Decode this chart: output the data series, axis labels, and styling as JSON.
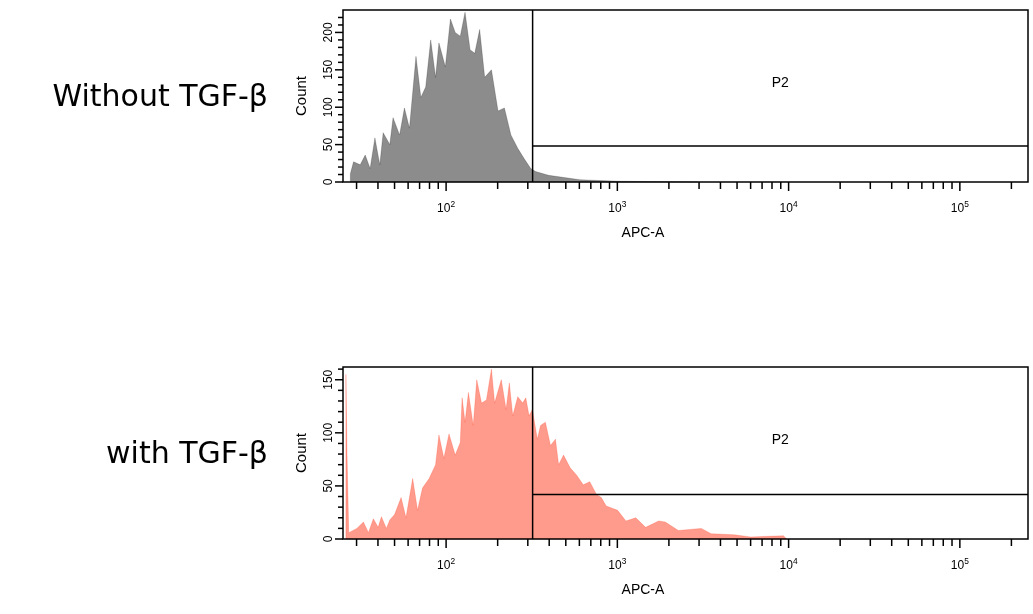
{
  "chart_data": [
    {
      "type": "area",
      "title": "Without TGF-β",
      "xlabel": "APC-A",
      "ylabel": "Count",
      "log": "x",
      "color": "#000000",
      "x": [
        27.6,
        28.8,
        31.5,
        33.7,
        36,
        38.4,
        41,
        42.9,
        46.9,
        49,
        53.5,
        57.1,
        61.1,
        66.7,
        71.2,
        76,
        81.3,
        86.8,
        90.8,
        99,
        106,
        113,
        121,
        129,
        138,
        147,
        157,
        168,
        184,
        201,
        219,
        239,
        262,
        286,
        312,
        333,
        396,
        605,
        1030,
        2950
      ],
      "values": [
        11,
        27,
        23,
        36,
        18,
        59,
        23,
        66,
        50,
        86,
        63,
        99,
        72,
        168,
        113,
        127,
        190,
        140,
        186,
        154,
        218,
        200,
        195,
        227,
        177,
        172,
        204,
        140,
        150,
        95,
        99,
        63,
        45,
        31,
        18,
        14,
        9,
        3,
        1,
        0
      ],
      "xlim": [
        25,
        250000
      ],
      "ylim": [
        0,
        230
      ],
      "xticks": [
        {
          "value": 30,
          "label": null
        },
        {
          "value": 40,
          "label": null
        },
        {
          "value": 50,
          "label": null
        },
        {
          "value": 60,
          "label": null
        },
        {
          "value": 70,
          "label": null
        },
        {
          "value": 80,
          "label": null
        },
        {
          "value": 90,
          "label": null
        },
        {
          "value": 100,
          "label": "10$^{2}$"
        },
        {
          "value": 200,
          "label": null
        },
        {
          "value": 300,
          "label": null
        },
        {
          "value": 400,
          "label": null
        },
        {
          "value": 500,
          "label": null
        },
        {
          "value": 600,
          "label": null
        },
        {
          "value": 700,
          "label": null
        },
        {
          "value": 800,
          "label": null
        },
        {
          "value": 900,
          "label": null
        },
        {
          "value": 1000,
          "label": "10$^{3}$"
        },
        {
          "value": 2000,
          "label": null
        },
        {
          "value": 3000,
          "label": null
        },
        {
          "value": 4000,
          "label": null
        },
        {
          "value": 5000,
          "label": null
        },
        {
          "value": 6000,
          "label": null
        },
        {
          "value": 7000,
          "label": null
        },
        {
          "value": 8000,
          "label": null
        },
        {
          "value": 9000,
          "label": null
        },
        {
          "value": 10000,
          "label": "10$^{4}$"
        },
        {
          "value": 20000,
          "label": null
        },
        {
          "value": 30000,
          "label": null
        },
        {
          "value": 40000,
          "label": null
        },
        {
          "value": 50000,
          "label": null
        },
        {
          "value": 60000,
          "label": null
        },
        {
          "value": 70000,
          "label": null
        },
        {
          "value": 80000,
          "label": null
        },
        {
          "value": 90000,
          "label": null
        },
        {
          "value": 100000,
          "label": "10$^{5}$"
        },
        {
          "value": 200000,
          "label": null
        }
      ],
      "yticks": [
        0,
        {
          "value": 10,
          "label": null
        },
        {
          "value": 20,
          "label": null
        },
        {
          "value": 30,
          "label": null
        },
        {
          "value": 40,
          "label": null
        },
        50,
        {
          "value": 60,
          "label": null
        },
        {
          "value": 70,
          "label": null
        },
        {
          "value": 80,
          "label": null
        },
        {
          "value": 90,
          "label": null
        },
        100,
        {
          "value": 110,
          "label": null
        },
        {
          "value": 120,
          "label": null
        },
        {
          "value": 130,
          "label": null
        },
        {
          "value": 140,
          "label": null
        },
        150,
        {
          "value": 160,
          "label": null
        },
        {
          "value": 170,
          "label": null
        },
        {
          "value": 180,
          "label": null
        },
        {
          "value": 190,
          "label": null
        },
        200,
        {
          "value": 210,
          "label": null
        },
        {
          "value": 220,
          "label": null
        }
      ],
      "ref_lines": [
        {
          "axis": "x",
          "value": 320,
          "label": "P2"
        },
        {
          "axis": "y",
          "value": 48
        }
      ]
    },
    {
      "type": "area",
      "title": "with TGF-β",
      "xlabel": "APC-A",
      "ylabel": "Count",
      "log": "x",
      "color": "#ff2000",
      "x": [
        26,
        26.4,
        27,
        30.1,
        32.9,
        35.2,
        37.6,
        40.1,
        41.9,
        44.8,
        46.9,
        50,
        54.6,
        58.3,
        63.8,
        68.1,
        72.8,
        79.6,
        86.8,
        90.8,
        97,
        104,
        113,
        121,
        124,
        129,
        135,
        144,
        151,
        161,
        172,
        184,
        192,
        210,
        224,
        234,
        245,
        262,
        280,
        292,
        305,
        319,
        341,
        356,
        380,
        407,
        435,
        454,
        485,
        530,
        579,
        632,
        690,
        755,
        806,
        861,
        900,
        1004,
        1122,
        1281,
        1462,
        1743,
        1905,
        2271,
        3090,
        3530,
        4810,
        6000,
        9330,
        9750
      ],
      "values": [
        155,
        79,
        6,
        10,
        16,
        6,
        19,
        11,
        21,
        10,
        18,
        23,
        39,
        20,
        57,
        27,
        48,
        57,
        70,
        98,
        76,
        99,
        79,
        91,
        133,
        110,
        138,
        107,
        150,
        128,
        131,
        160,
        128,
        150,
        122,
        147,
        116,
        134,
        128,
        133,
        116,
        122,
        94,
        107,
        110,
        88,
        94,
        70,
        79,
        67,
        60,
        51,
        54,
        42,
        39,
        31,
        30,
        27,
        17,
        20,
        11,
        17,
        16,
        8,
        10,
        5,
        4,
        2,
        3,
        0
      ],
      "xlim": [
        25,
        250000
      ],
      "ylim": [
        0,
        162
      ],
      "xticks": [
        {
          "value": 30,
          "label": null
        },
        {
          "value": 40,
          "label": null
        },
        {
          "value": 50,
          "label": null
        },
        {
          "value": 60,
          "label": null
        },
        {
          "value": 70,
          "label": null
        },
        {
          "value": 80,
          "label": null
        },
        {
          "value": 90,
          "label": null
        },
        {
          "value": 100,
          "label": "10$^{2}$"
        },
        {
          "value": 200,
          "label": null
        },
        {
          "value": 300,
          "label": null
        },
        {
          "value": 400,
          "label": null
        },
        {
          "value": 500,
          "label": null
        },
        {
          "value": 600,
          "label": null
        },
        {
          "value": 700,
          "label": null
        },
        {
          "value": 800,
          "label": null
        },
        {
          "value": 900,
          "label": null
        },
        {
          "value": 1000,
          "label": "10$^{3}$"
        },
        {
          "value": 2000,
          "label": null
        },
        {
          "value": 3000,
          "label": null
        },
        {
          "value": 4000,
          "label": null
        },
        {
          "value": 5000,
          "label": null
        },
        {
          "value": 6000,
          "label": null
        },
        {
          "value": 7000,
          "label": null
        },
        {
          "value": 8000,
          "label": null
        },
        {
          "value": 9000,
          "label": null
        },
        {
          "value": 10000,
          "label": "10$^{4}$"
        },
        {
          "value": 20000,
          "label": null
        },
        {
          "value": 30000,
          "label": null
        },
        {
          "value": 40000,
          "label": null
        },
        {
          "value": 50000,
          "label": null
        },
        {
          "value": 60000,
          "label": null
        },
        {
          "value": 70000,
          "label": null
        },
        {
          "value": 80000,
          "label": null
        },
        {
          "value": 90000,
          "label": null
        },
        {
          "value": 100000,
          "label": "10$^{5}$"
        },
        {
          "value": 200000,
          "label": null
        }
      ],
      "yticks": [
        0,
        {
          "value": 10,
          "label": null
        },
        {
          "value": 20,
          "label": null
        },
        {
          "value": 30,
          "label": null
        },
        {
          "value": 40,
          "label": null
        },
        50,
        {
          "value": 60,
          "label": null
        },
        {
          "value": 70,
          "label": null
        },
        {
          "value": 80,
          "label": null
        },
        {
          "value": 90,
          "label": null
        },
        100,
        {
          "value": 110,
          "label": null
        },
        {
          "value": 120,
          "label": null
        },
        {
          "value": 130,
          "label": null
        },
        {
          "value": 140,
          "label": null
        },
        150,
        {
          "value": 160,
          "label": null
        }
      ],
      "ref_lines": [
        {
          "axis": "x",
          "value": 320,
          "label": "P2"
        },
        {
          "axis": "y",
          "value": 42
        }
      ]
    }
  ]
}
